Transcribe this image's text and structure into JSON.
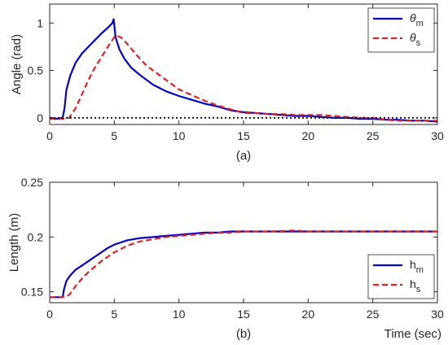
{
  "chart_data": [
    {
      "type": "line",
      "panel_label": "(a)",
      "xlabel": "",
      "ylabel": "Angle (rad)",
      "xlim": [
        0,
        30
      ],
      "ylim": [
        -0.07,
        1.2
      ],
      "xticks": [
        0,
        5,
        10,
        15,
        20,
        25,
        30
      ],
      "xtick_labels": [
        "0",
        "5",
        "10",
        "15",
        "20",
        "25",
        "30"
      ],
      "yticks": [
        0,
        0.5,
        1
      ],
      "ytick_labels": [
        "0",
        "0.5",
        "1"
      ],
      "grid": false,
      "legend_position": "top-right",
      "legend": [
        {
          "main": "θ",
          "sub": "m",
          "color": "#0000cc",
          "dash": "solid"
        },
        {
          "main": "θ",
          "sub": "s",
          "color": "#e02020",
          "dash": "dashed"
        }
      ],
      "series": [
        {
          "name": "θm",
          "color": "#0000cc",
          "dash": "solid",
          "x": [
            0,
            0.5,
            1.0,
            1.15,
            1.3,
            1.6,
            2.0,
            2.5,
            3.0,
            3.5,
            4.0,
            4.5,
            4.85,
            4.95,
            5.1,
            5.4,
            5.8,
            6.3,
            7.0,
            8.0,
            9.0,
            10.0,
            11.0,
            12.0,
            13.0,
            14.0,
            15.0,
            16.0,
            17.0,
            18.0,
            19.0,
            20.0,
            21.0,
            22.0,
            23.0,
            24.0,
            25.0,
            26.0,
            27.0,
            28.0,
            29.0,
            30.0
          ],
          "y": [
            0.0,
            -0.01,
            0.0,
            0.1,
            0.3,
            0.45,
            0.58,
            0.68,
            0.75,
            0.82,
            0.89,
            0.95,
            1.0,
            1.04,
            0.85,
            0.72,
            0.62,
            0.53,
            0.45,
            0.35,
            0.28,
            0.23,
            0.19,
            0.15,
            0.12,
            0.08,
            0.06,
            0.05,
            0.04,
            0.03,
            0.02,
            0.02,
            0.01,
            0.0,
            0.0,
            -0.01,
            -0.01,
            -0.02,
            -0.02,
            -0.03,
            -0.03,
            -0.04
          ]
        },
        {
          "name": "θs",
          "color": "#e02020",
          "dash": "dashed",
          "x": [
            0,
            0.5,
            1.0,
            1.5,
            2.0,
            2.5,
            3.0,
            3.5,
            4.0,
            4.5,
            4.9,
            5.1,
            5.5,
            6.0,
            6.5,
            7.0,
            7.5,
            8.0,
            9.0,
            10.0,
            11.0,
            12.0,
            13.0,
            14.0,
            15.0,
            16.0,
            17.0,
            18.0,
            19.0,
            20.0,
            21.0,
            22.0,
            23.0,
            24.0,
            25.0,
            26.0,
            27.0,
            28.0,
            29.0,
            30.0
          ],
          "y": [
            -0.01,
            -0.01,
            -0.01,
            0.0,
            0.1,
            0.25,
            0.4,
            0.53,
            0.64,
            0.75,
            0.83,
            0.87,
            0.85,
            0.78,
            0.7,
            0.62,
            0.55,
            0.5,
            0.4,
            0.3,
            0.24,
            0.18,
            0.13,
            0.09,
            0.05,
            0.05,
            0.04,
            0.04,
            0.03,
            0.03,
            0.03,
            0.02,
            0.01,
            0.0,
            0.0,
            -0.02,
            -0.03,
            -0.03,
            -0.03,
            -0.03
          ]
        },
        {
          "name": "",
          "color": "#000000",
          "dash": "dotted",
          "x": [
            0,
            30
          ],
          "y": [
            0,
            0
          ]
        }
      ]
    },
    {
      "type": "line",
      "panel_label": "(b)",
      "xlabel": "Time (sec)",
      "ylabel": "Length (m)",
      "xlim": [
        0,
        30
      ],
      "ylim": [
        0.14,
        0.25
      ],
      "xticks": [
        0,
        5,
        10,
        15,
        20,
        25,
        30
      ],
      "xtick_labels": [
        "0",
        "5",
        "10",
        "15",
        "20",
        "25",
        "30"
      ],
      "yticks": [
        0.15,
        0.2,
        0.25
      ],
      "ytick_labels": [
        "0.15",
        "0.2",
        "0.25"
      ],
      "grid": false,
      "legend_position": "bottom-right",
      "legend": [
        {
          "main": "h",
          "sub": "m",
          "color": "#0000cc",
          "dash": "solid"
        },
        {
          "main": "h",
          "sub": "s",
          "color": "#e02020",
          "dash": "dashed"
        }
      ],
      "series": [
        {
          "name": "hm",
          "color": "#0000cc",
          "dash": "solid",
          "x": [
            0,
            1.0,
            1.1,
            1.3,
            1.6,
            2.0,
            2.5,
            3.0,
            3.5,
            4.0,
            4.5,
            5.0,
            5.5,
            6.0,
            7.0,
            8.0,
            9.0,
            10.0,
            11.0,
            12.0,
            13.0,
            14.0,
            15.0,
            17.0,
            20.0,
            25.0,
            30.0
          ],
          "y": [
            0.145,
            0.145,
            0.152,
            0.16,
            0.165,
            0.17,
            0.174,
            0.178,
            0.182,
            0.186,
            0.19,
            0.193,
            0.195,
            0.197,
            0.199,
            0.2,
            0.201,
            0.202,
            0.203,
            0.204,
            0.204,
            0.205,
            0.205,
            0.205,
            0.205,
            0.205,
            0.205
          ]
        },
        {
          "name": "hs",
          "color": "#e02020",
          "dash": "dashed",
          "x": [
            0,
            1.0,
            1.5,
            2.0,
            2.5,
            3.0,
            3.5,
            4.0,
            4.5,
            5.0,
            5.5,
            6.0,
            6.5,
            7.0,
            8.0,
            9.0,
            10.0,
            11.0,
            12.0,
            13.0,
            14.0,
            15.0,
            17.0,
            19.0,
            20.0,
            22.0,
            25.0,
            27.0,
            30.0
          ],
          "y": [
            0.145,
            0.145,
            0.147,
            0.155,
            0.162,
            0.168,
            0.173,
            0.178,
            0.182,
            0.186,
            0.189,
            0.192,
            0.194,
            0.196,
            0.198,
            0.2,
            0.201,
            0.202,
            0.203,
            0.204,
            0.204,
            0.205,
            0.205,
            0.206,
            0.205,
            0.205,
            0.205,
            0.205,
            0.205
          ]
        }
      ]
    }
  ]
}
